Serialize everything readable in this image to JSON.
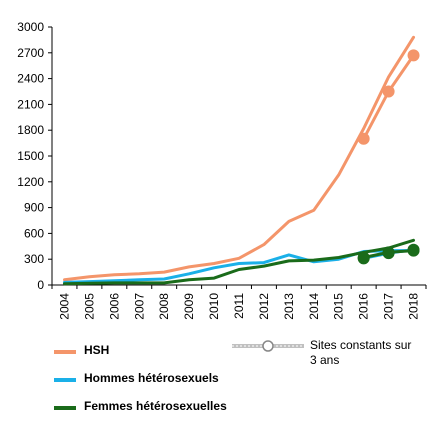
{
  "chart_data": {
    "type": "line",
    "x": [
      "2004",
      "2005",
      "2006",
      "2007",
      "2008",
      "2009",
      "2010",
      "2011",
      "2012",
      "2013",
      "2014",
      "2015",
      "2016",
      "2017",
      "2018"
    ],
    "ylim": [
      0,
      3000
    ],
    "yticks": [
      0,
      300,
      600,
      900,
      1200,
      1500,
      1800,
      2100,
      2400,
      2700,
      3000
    ],
    "series": [
      {
        "name": "HSH",
        "color": "#f4956a",
        "values": [
          60,
          95,
          120,
          130,
          150,
          210,
          250,
          310,
          470,
          740,
          870,
          1280,
          1820,
          2420,
          2880
        ]
      },
      {
        "name": "Hommes hétérosexuels",
        "color": "#1ab0e8",
        "values": [
          30,
          40,
          50,
          60,
          70,
          130,
          200,
          250,
          260,
          350,
          270,
          300,
          390,
          400,
          400
        ]
      },
      {
        "name": "Femmes hétérosexuelles",
        "color": "#1a6b1a",
        "values": [
          15,
          20,
          25,
          25,
          25,
          60,
          80,
          180,
          220,
          280,
          290,
          320,
          380,
          430,
          520
        ]
      }
    ],
    "constant_sites": {
      "label": "Sites constants sur 3 ans",
      "x": [
        "2016",
        "2017",
        "2018"
      ],
      "series": [
        {
          "name": "HSH",
          "color": "#f4956a",
          "values": [
            1700,
            2250,
            2670
          ]
        },
        {
          "name": "Hommes hétérosexuels",
          "color": "#1ab0e8",
          "values": [
            310,
            370,
            410
          ]
        },
        {
          "name": "Femmes hétérosexuelles",
          "color": "#1a6b1a",
          "values": [
            320,
            380,
            400
          ]
        }
      ]
    },
    "legend": {
      "hsh": "HSH",
      "hommes": "Hommes hétérosexuels",
      "femmes": "Femmes hétérosexuelles",
      "sites": "Sites constants sur 3 ans"
    },
    "grid": false
  }
}
